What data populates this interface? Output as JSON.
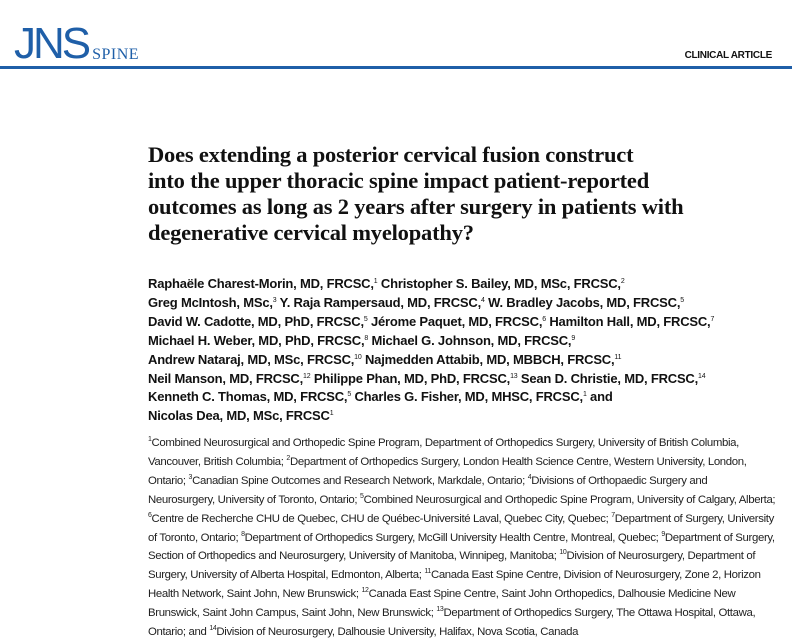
{
  "header": {
    "logo_text": "JNS",
    "logo_subtext": "SPINE",
    "article_type": "CLINICAL ARTICLE",
    "brand_color": "#1f5fa8"
  },
  "title_lines": [
    "Does extending a posterior cervical fusion construct",
    "into the upper thoracic spine impact patient-reported",
    "outcomes as long as 2 years after surgery in patients with",
    "degenerative cervical myelopathy?"
  ],
  "author_lines": [
    [
      {
        "t": "Raphaële Charest-Morin, MD, FRCSC,",
        "s": "1"
      },
      {
        "t": " Christopher S. Bailey, MD, MSc, FRCSC,",
        "s": "2"
      }
    ],
    [
      {
        "t": "Greg McIntosh, MSc,",
        "s": "3"
      },
      {
        "t": " Y. Raja Rampersaud, MD, FRCSC,",
        "s": "4"
      },
      {
        "t": " W. Bradley Jacobs, MD, FRCSC,",
        "s": "5"
      }
    ],
    [
      {
        "t": "David W. Cadotte, MD, PhD, FRCSC,",
        "s": "5"
      },
      {
        "t": " Jérome Paquet, MD, FRCSC,",
        "s": "6"
      },
      {
        "t": " Hamilton Hall, MD, FRCSC,",
        "s": "7"
      }
    ],
    [
      {
        "t": "Michael H. Weber, MD, PhD, FRCSC,",
        "s": "8"
      },
      {
        "t": " Michael G. Johnson, MD, FRCSC,",
        "s": "9"
      }
    ],
    [
      {
        "t": "Andrew Nataraj, MD, MSc, FRCSC,",
        "s": "10"
      },
      {
        "t": " Najmedden Attabib, MD, MBBCH, FRCSC,",
        "s": "11"
      }
    ],
    [
      {
        "t": "Neil Manson, MD, FRCSC,",
        "s": "12"
      },
      {
        "t": " Philippe Phan, MD, PhD, FRCSC,",
        "s": "13"
      },
      {
        "t": " Sean D. Christie, MD, FRCSC,",
        "s": "14"
      }
    ],
    [
      {
        "t": "Kenneth C. Thomas, MD, FRCSC,",
        "s": "5"
      },
      {
        "t": " Charles G. Fisher, MD, MHSC, FRCSC,",
        "s": "1"
      },
      {
        "t": " and",
        "s": ""
      }
    ],
    [
      {
        "t": "Nicolas Dea, MD, MSc, FRCSC",
        "s": "1"
      }
    ]
  ],
  "affiliations": [
    {
      "n": "1",
      "text": "Combined Neurosurgical and Orthopedic Spine Program, Department of Orthopedics Surgery, University of British Columbia, Vancouver, British Columbia; "
    },
    {
      "n": "2",
      "text": "Department of Orthopedics Surgery, London Health Science Centre, Western University, London, Ontario; "
    },
    {
      "n": "3",
      "text": "Canadian Spine Outcomes and Research Network, Markdale, Ontario; "
    },
    {
      "n": "4",
      "text": "Divisions of Orthopaedic Surgery and Neurosurgery, University of Toronto, Ontario; "
    },
    {
      "n": "5",
      "text": "Combined Neurosurgical and Orthopedic Spine Program, University of Calgary, Alberta; "
    },
    {
      "n": "6",
      "text": "Centre de Recherche CHU de Quebec, CHU de Québec-Université Laval, Quebec City, Quebec; "
    },
    {
      "n": "7",
      "text": "Department of Surgery, University of Toronto, Ontario; "
    },
    {
      "n": "8",
      "text": "Department of Orthopedics Surgery, McGill University Health Centre, Montreal, Quebec; "
    },
    {
      "n": "9",
      "text": "Department of Surgery, Section of Orthopedics and Neurosurgery, University of Manitoba, Winnipeg, Manitoba; "
    },
    {
      "n": "10",
      "text": "Division of Neurosurgery, Department of Surgery, University of Alberta Hospital, Edmonton, Alberta; "
    },
    {
      "n": "11",
      "text": "Canada East Spine Centre, Division of Neurosurgery, Zone 2, Horizon Health Network, Saint John, New Brunswick; "
    },
    {
      "n": "12",
      "text": "Canada East Spine Centre, Saint John Orthopedics, Dalhousie Medicine New Brunswick, Saint John Campus, Saint John, New Brunswick; "
    },
    {
      "n": "13",
      "text": "Department of Orthopedics Surgery, The Ottawa Hospital, Ottawa, Ontario; and "
    },
    {
      "n": "14",
      "text": "Division of Neurosurgery, Dalhousie University, Halifax, Nova Scotia, Canada"
    }
  ]
}
